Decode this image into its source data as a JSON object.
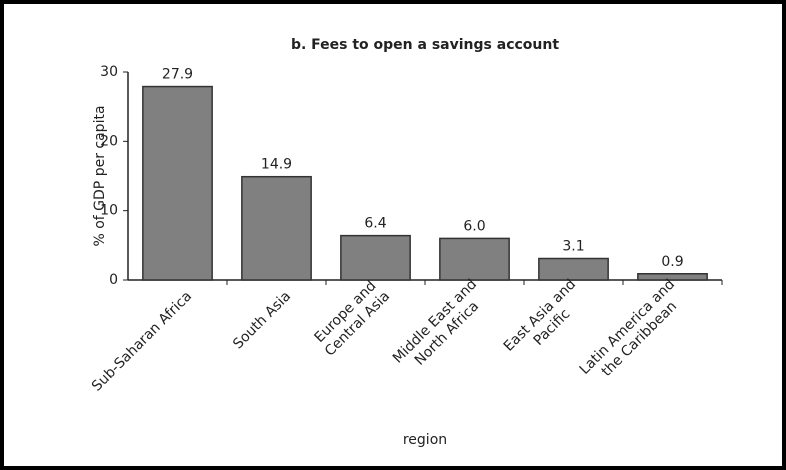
{
  "chart_data": {
    "type": "bar",
    "title": "b. Fees to open a savings account",
    "x_label": "region",
    "y_label": "% of GDP per capita",
    "categories": [
      "Sub-Saharan Africa",
      "South Asia",
      "Europe and\nCentral Asia",
      "Middle East and\nNorth Africa",
      "East Asia and\nPacific",
      "Latin America and\nthe Caribbean"
    ],
    "values": [
      27.9,
      14.9,
      6.4,
      6.0,
      3.1,
      0.9
    ],
    "value_labels": [
      "27.9",
      "14.9",
      "6.4",
      "6.0",
      "3.1",
      "0.9"
    ],
    "color": "#808080",
    "ylim": [
      0,
      30
    ],
    "yticks": [
      0,
      10,
      20,
      30
    ],
    "grid": false
  }
}
